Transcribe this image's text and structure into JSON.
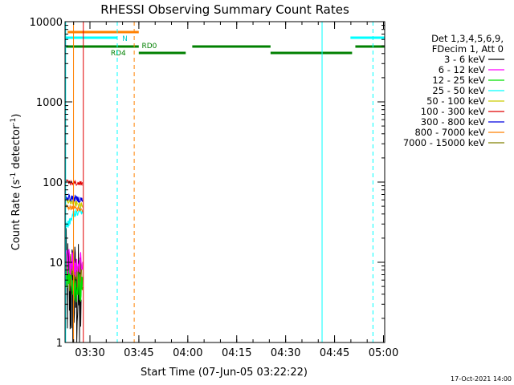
{
  "chart_data": {
    "type": "line",
    "title": "RHESSI Observing Summary Count Rates",
    "xlabel": "Start Time (07-Jun-05 03:22:22)",
    "ylabel_main": "Count Rate (s",
    "ylabel_sup1": "-1",
    "ylabel_mid": " detector",
    "ylabel_sup2": "-1",
    "ylabel_end": ")",
    "y_scale": "log",
    "ylim": [
      1,
      10000
    ],
    "xlim_minutes": [
      0,
      98
    ],
    "y_ticks": [
      {
        "value": 1,
        "label": "1"
      },
      {
        "value": 10,
        "label": "10"
      },
      {
        "value": 100,
        "label": "100"
      },
      {
        "value": 1000,
        "label": "1000"
      },
      {
        "value": 10000,
        "label": "10000"
      }
    ],
    "x_ticks": [
      {
        "value": 7.63,
        "label": "03:30"
      },
      {
        "value": 22.63,
        "label": "03:45"
      },
      {
        "value": 37.63,
        "label": "04:00"
      },
      {
        "value": 52.63,
        "label": "04:15"
      },
      {
        "value": 67.63,
        "label": "04:30"
      },
      {
        "value": 82.63,
        "label": "04:45"
      },
      {
        "value": 97.63,
        "label": "05:00"
      }
    ],
    "legend_header": [
      "Det 1,3,4,5,6,9,",
      "FDecim 1, Att 0"
    ],
    "legend_position": "right",
    "series": [
      {
        "name": "3 - 6 keV",
        "color": "#000000"
      },
      {
        "name": "6 - 12 keV",
        "color": "#ff00ff"
      },
      {
        "name": "12 - 25 keV",
        "color": "#00e000"
      },
      {
        "name": "25 - 50 keV",
        "color": "#00ffff"
      },
      {
        "name": "50 - 100 keV",
        "color": "#cccc00"
      },
      {
        "name": "100 - 300 keV",
        "color": "#e00000"
      },
      {
        "name": "300 - 800 keV",
        "color": "#0000e0"
      },
      {
        "name": "800 - 7000 keV",
        "color": "#ff8000"
      },
      {
        "name": "7000 - 15000 keV",
        "color": "#808000"
      }
    ],
    "annotations": [
      {
        "text": "N",
        "color": "#00cccc"
      },
      {
        "text": "RD0",
        "color": "#008000"
      },
      {
        "text": "RD4",
        "color": "#008000"
      }
    ],
    "timestamp": "17-Oct-2021 14:00"
  }
}
